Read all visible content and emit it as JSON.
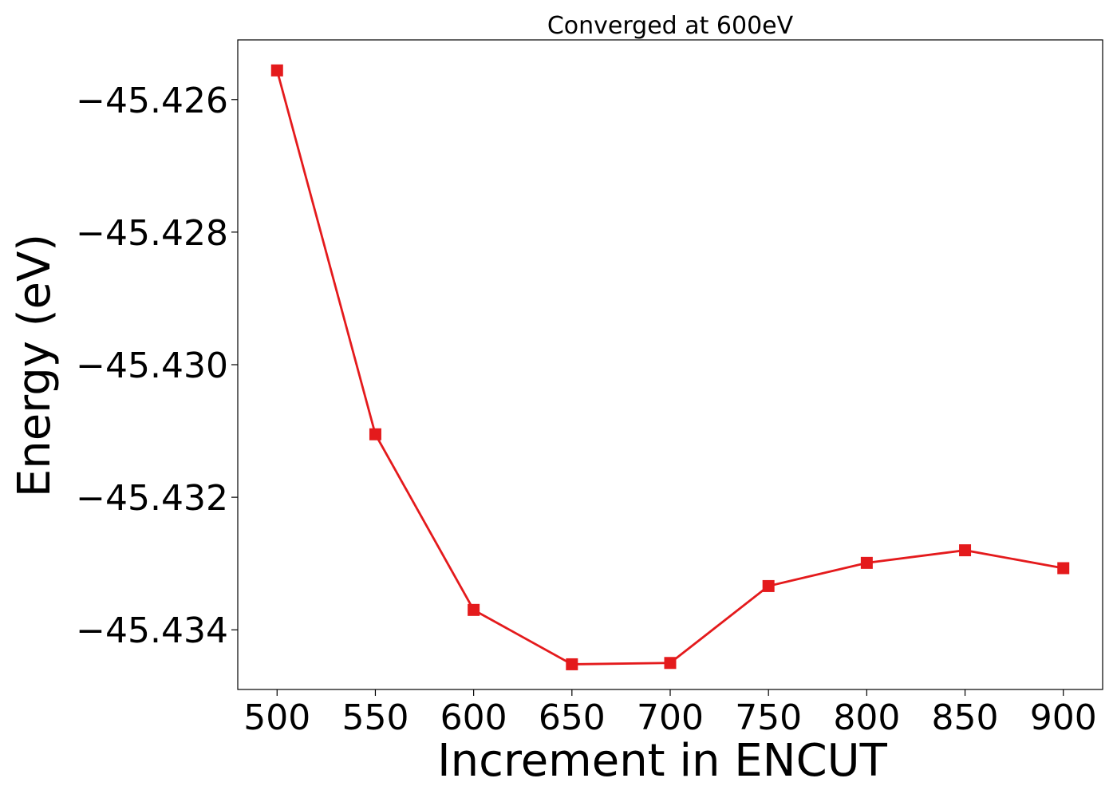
{
  "chart_data": {
    "type": "line",
    "title": "Converged at 600eV",
    "xlabel": "Increment in ENCUT",
    "ylabel": "Energy (eV)",
    "xlim": [
      480,
      920
    ],
    "ylim": [
      -45.4349,
      -45.4251
    ],
    "x_ticks": [
      500,
      550,
      600,
      650,
      700,
      750,
      800,
      850,
      900
    ],
    "x_tick_labels": [
      "500",
      "550",
      "600",
      "650",
      "700",
      "750",
      "800",
      "850",
      "900"
    ],
    "y_ticks": [
      -45.426,
      -45.428,
      -45.43,
      -45.432,
      -45.434
    ],
    "y_tick_labels": [
      "−45.426",
      "−45.428",
      "−45.430",
      "−45.432",
      "−45.434"
    ],
    "grid": false,
    "series": [
      {
        "color": "#e41a1c",
        "marker": "square",
        "x": [
          500,
          550,
          600,
          650,
          700,
          750,
          800,
          850,
          900
        ],
        "y": [
          -45.42556,
          -45.43105,
          -45.4337,
          -45.43452,
          -45.4345,
          -45.43334,
          -45.43299,
          -45.4328,
          -45.43307
        ]
      }
    ]
  }
}
